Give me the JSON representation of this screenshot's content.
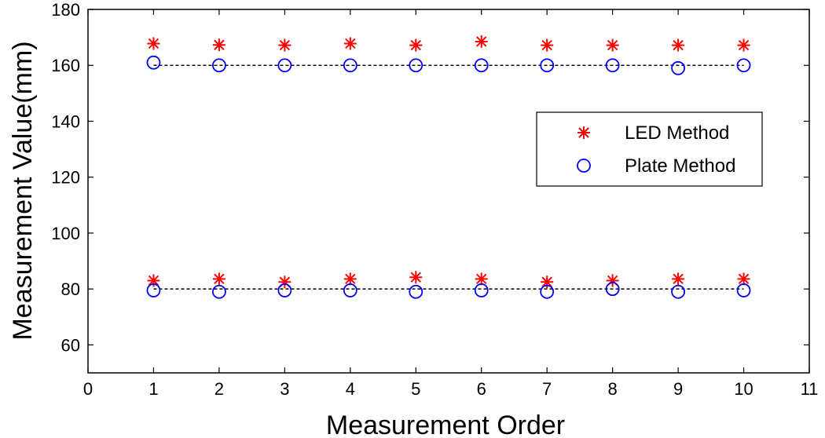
{
  "chart_data": {
    "type": "scatter",
    "xlabel": "Measurement Order",
    "ylabel": "Measurement Value(mm)",
    "xlim": [
      0,
      11
    ],
    "ylim": [
      50,
      180
    ],
    "xticks": [
      0,
      1,
      2,
      3,
      4,
      5,
      6,
      7,
      8,
      9,
      10,
      11
    ],
    "yticks": [
      60,
      80,
      100,
      120,
      140,
      160,
      180
    ],
    "grid": false,
    "legend_position": "top-right",
    "series": [
      {
        "name": "LED Method",
        "marker": "asterisk",
        "color": "#ff0000",
        "points": [
          {
            "x": 1,
            "y": 167.8
          },
          {
            "x": 2,
            "y": 167.3
          },
          {
            "x": 3,
            "y": 167.2
          },
          {
            "x": 4,
            "y": 167.8
          },
          {
            "x": 5,
            "y": 167.2
          },
          {
            "x": 6,
            "y": 168.5
          },
          {
            "x": 7,
            "y": 167.2
          },
          {
            "x": 8,
            "y": 167.2
          },
          {
            "x": 9,
            "y": 167.2
          },
          {
            "x": 10,
            "y": 167.2
          },
          {
            "x": 1,
            "y": 83.0
          },
          {
            "x": 2,
            "y": 83.6
          },
          {
            "x": 3,
            "y": 82.5
          },
          {
            "x": 4,
            "y": 83.6
          },
          {
            "x": 5,
            "y": 84.2
          },
          {
            "x": 6,
            "y": 83.6
          },
          {
            "x": 7,
            "y": 82.5
          },
          {
            "x": 8,
            "y": 83.0
          },
          {
            "x": 9,
            "y": 83.6
          },
          {
            "x": 10,
            "y": 83.6
          }
        ]
      },
      {
        "name": "Plate Method",
        "marker": "circle",
        "color": "#0000ff",
        "points": [
          {
            "x": 1,
            "y": 161.0
          },
          {
            "x": 2,
            "y": 160.0
          },
          {
            "x": 3,
            "y": 160.0
          },
          {
            "x": 4,
            "y": 160.0
          },
          {
            "x": 5,
            "y": 160.0
          },
          {
            "x": 6,
            "y": 160.0
          },
          {
            "x": 7,
            "y": 160.0
          },
          {
            "x": 8,
            "y": 160.0
          },
          {
            "x": 9,
            "y": 159.0
          },
          {
            "x": 10,
            "y": 160.0
          },
          {
            "x": 1,
            "y": 79.5
          },
          {
            "x": 2,
            "y": 79.0
          },
          {
            "x": 3,
            "y": 79.5
          },
          {
            "x": 4,
            "y": 79.5
          },
          {
            "x": 5,
            "y": 79.0
          },
          {
            "x": 6,
            "y": 79.5
          },
          {
            "x": 7,
            "y": 79.0
          },
          {
            "x": 8,
            "y": 80.0
          },
          {
            "x": 9,
            "y": 79.0
          },
          {
            "x": 10,
            "y": 79.5
          }
        ]
      }
    ],
    "reference_lines": [
      {
        "style": "dashed",
        "color": "#000000",
        "x_from": 1,
        "x_to": 10,
        "y": 160
      },
      {
        "style": "dashed",
        "color": "#000000",
        "x_from": 1,
        "x_to": 10,
        "y": 80
      }
    ]
  }
}
